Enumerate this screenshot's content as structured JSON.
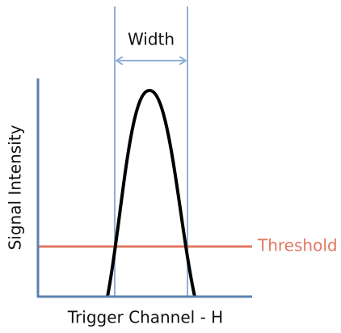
{
  "labels": {
    "width": "Width",
    "y_axis": "Signal Intensity",
    "threshold": "Threshold",
    "x_axis": "Trigger Channel - H"
  }
}
